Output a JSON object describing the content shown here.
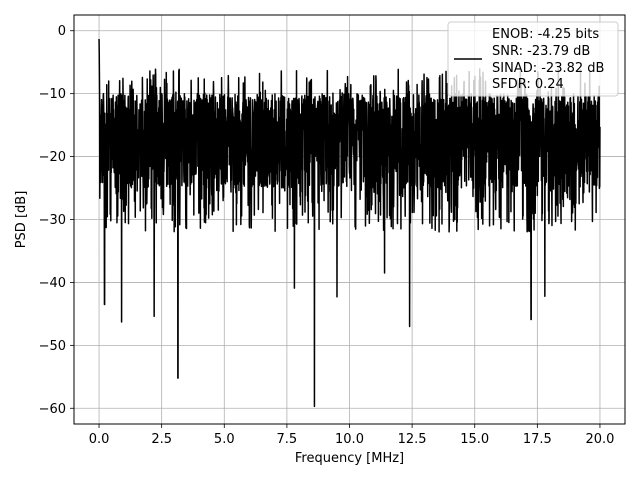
{
  "chart_data": {
    "type": "line",
    "title": "",
    "xlabel": "Frequency [MHz]",
    "ylabel": "PSD [dB]",
    "xlim": [
      -1,
      21
    ],
    "ylim": [
      -62.5,
      2.5
    ],
    "xticks": [
      0,
      2.5,
      5,
      7.5,
      10,
      12.5,
      15,
      17.5,
      20
    ],
    "xtick_labels": [
      "0.0",
      "2.5",
      "5.0",
      "7.5",
      "10.0",
      "12.5",
      "15.0",
      "17.5",
      "20.0"
    ],
    "yticks": [
      0,
      -10,
      -20,
      -30,
      -40,
      -50,
      -60
    ],
    "ytick_labels": [
      "0",
      "−10",
      "−20",
      "−30",
      "−40",
      "−50",
      "−60"
    ],
    "grid": true,
    "legend_position": "upper right",
    "series": [
      {
        "name": "ENOB: -4.25 bits\nSNR: -23.79 dB\nSINAD: -23.82 dB\nSFDR: 0.24",
        "color": "#000000",
        "x_range": [
          0,
          20
        ],
        "peak": {
          "x": 0.0,
          "y": 0.0
        },
        "typical_range": [
          -25,
          -10
        ],
        "notable_dips": [
          {
            "x": 0.22,
            "y": -43.5
          },
          {
            "x": 0.9,
            "y": -46.3
          },
          {
            "x": 2.2,
            "y": -45.4
          },
          {
            "x": 3.15,
            "y": -55.2
          },
          {
            "x": 7.8,
            "y": -40.9
          },
          {
            "x": 8.6,
            "y": -59.7
          },
          {
            "x": 9.5,
            "y": -42.3
          },
          {
            "x": 11.4,
            "y": -38.5
          },
          {
            "x": 12.4,
            "y": -47.0
          },
          {
            "x": 17.25,
            "y": -45.9
          },
          {
            "x": 17.8,
            "y": -42.2
          }
        ]
      }
    ]
  },
  "legend": {
    "lines": [
      "ENOB: -4.25 bits",
      "SNR: -23.79 dB",
      "SINAD: -23.82 dB",
      "SFDR: 0.24"
    ]
  }
}
